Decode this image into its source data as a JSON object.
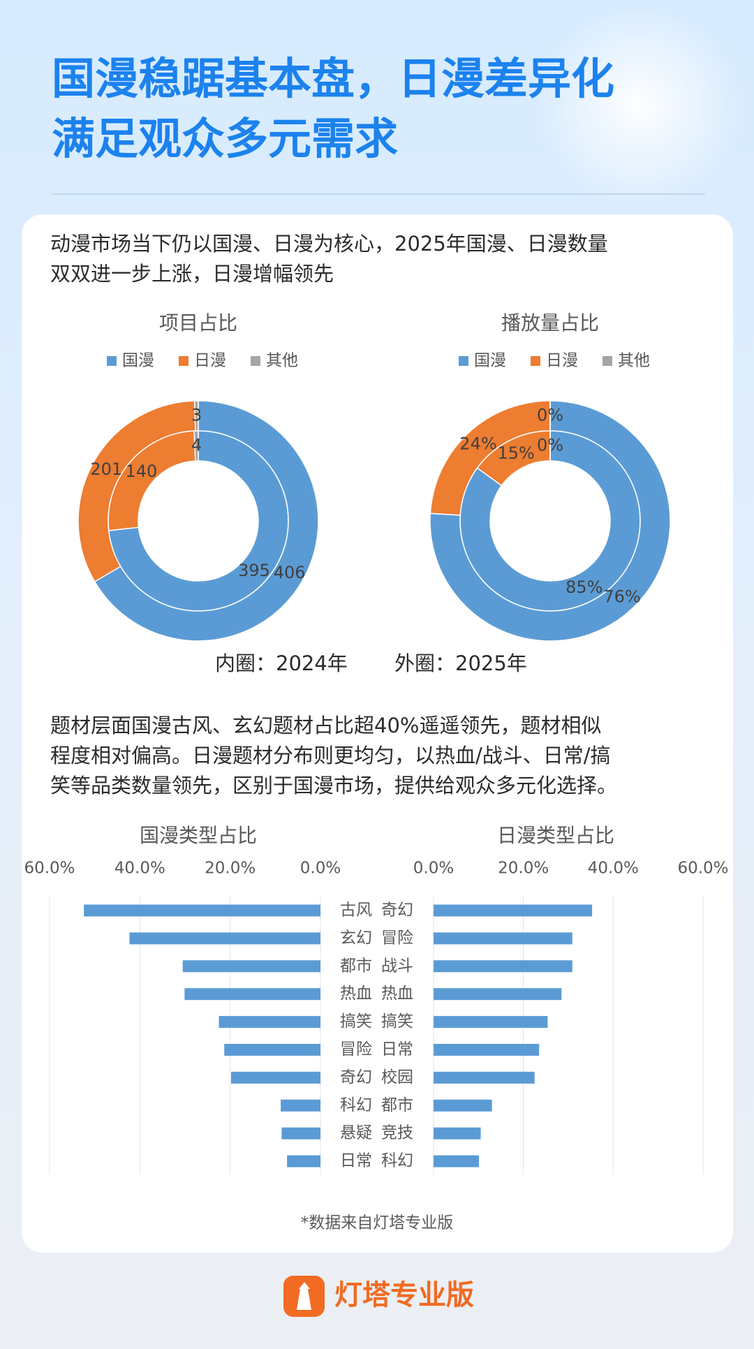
{
  "title_lines": [
    "国漫稳踞基本盘，日漫差异化",
    "满足观众多元需求"
  ],
  "intro_lines": [
    "动漫市场当下仍以国漫、日漫为核心，2025年国漫、日漫数量",
    "双双进一步上涨，日漫增幅领先"
  ],
  "ring_caption": [
    "内圈：2024年",
    "外圈：2025年"
  ],
  "genre_lines": [
    "题材层面国漫古风、玄幻题材占比超40%遥遥领先，题材相似",
    "程度相对偏高。日漫题材分布则更均匀，以热血/战斗、日常/搞",
    "笑等品类数量领先，区别于国漫市场，提供给观众多元化选择。"
  ],
  "source": "*数据来自灯塔专业版",
  "brand": "灯塔专业版",
  "chart_data": [
    {
      "type": "donut",
      "title": "项目占比",
      "legend": "top",
      "categories": [
        "国漫",
        "日漫",
        "其他"
      ],
      "colors": [
        "#5b9bd5",
        "#ed7d31",
        "#a5a5a5"
      ],
      "rings": [
        {
          "values": [
            395,
            140,
            4
          ]
        },
        {
          "values": [
            406,
            201,
            3
          ]
        }
      ]
    },
    {
      "type": "donut",
      "title": "播放量占比",
      "legend": "top",
      "categories": [
        "国漫",
        "日漫",
        "其他"
      ],
      "colors": [
        "#5b9bd5",
        "#ed7d31",
        "#a5a5a5"
      ],
      "rings": [
        {
          "values": [
            85,
            15,
            0
          ],
          "value_labels": [
            "85%",
            "15%",
            "0%"
          ]
        },
        {
          "values": [
            76,
            24,
            0
          ],
          "value_labels": [
            "76%",
            "24%",
            "0%"
          ]
        }
      ]
    },
    {
      "type": "bar",
      "orientation": "horizontal",
      "reversed": true,
      "title": "国漫类型占比",
      "color": "#5b9bd5",
      "grid": true,
      "categories": [
        "古风",
        "玄幻",
        "都市",
        "热血",
        "搞笑",
        "冒险",
        "奇幻",
        "科幻",
        "悬疑",
        "日常"
      ],
      "values": [
        52.4,
        42.3,
        30.5,
        30.1,
        22.5,
        21.3,
        19.8,
        8.8,
        8.6,
        7.4
      ],
      "xlim": [
        0,
        60
      ],
      "xticks": [
        {
          "value": 60,
          "label": "60.0%"
        },
        {
          "value": 40,
          "label": "40.0%"
        },
        {
          "value": 20,
          "label": "20.0%"
        },
        {
          "value": 0,
          "label": "0.0%"
        }
      ]
    },
    {
      "type": "bar",
      "orientation": "horizontal",
      "reversed": false,
      "title": "日漫类型占比",
      "color": "#5b9bd5",
      "grid": true,
      "categories": [
        "奇幻",
        "冒险",
        "战斗",
        "热血",
        "搞笑",
        "日常",
        "校园",
        "都市",
        "竞技",
        "科幻"
      ],
      "values": [
        35.3,
        30.9,
        30.9,
        28.5,
        25.4,
        23.5,
        22.5,
        13.0,
        10.5,
        10.1
      ],
      "xlim": [
        0,
        60
      ],
      "xticks": [
        {
          "value": 0,
          "label": "0.0%"
        },
        {
          "value": 20,
          "label": "20.0%"
        },
        {
          "value": 40,
          "label": "40.0%"
        },
        {
          "value": 60,
          "label": "60.0%"
        }
      ]
    }
  ]
}
